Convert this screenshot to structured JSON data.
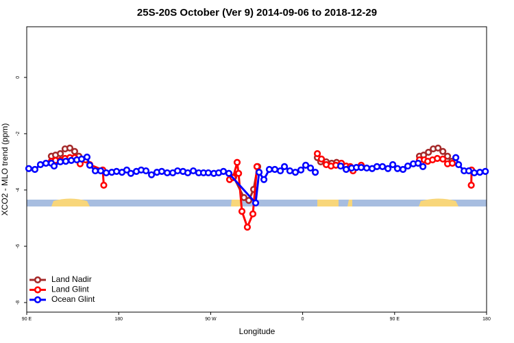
{
  "chart_data": {
    "type": "line",
    "title": "25S-20S October (Ver 9)   2014-09-06 to 2018-12-29",
    "x_label": "Longitude",
    "y_label": "XCO2 - MLO trend (ppm)",
    "xlim": [
      90,
      540
    ],
    "ylim": [
      -8.34,
      1.8
    ],
    "xticks": [
      {
        "value": 90,
        "label": "90 E"
      },
      {
        "value": 180,
        "label": "180"
      },
      {
        "value": 270,
        "label": "90 W"
      },
      {
        "value": 360,
        "label": "0"
      },
      {
        "value": 450,
        "label": "90 E"
      },
      {
        "value": 540,
        "label": "180"
      }
    ],
    "yticks": [
      0,
      -2,
      -4,
      -6,
      -8
    ],
    "legend": "bottom-left",
    "series": [
      {
        "name": "Land Nadir",
        "color": "#a52a2a",
        "x": [
          114.1,
          118.2,
          122.9,
          127.5,
          132.2,
          136.9,
          141.0,
          null,
          292.5,
          302.6,
          307.3,
          312.0,
          316.0,
          null,
          374.4,
          377.7,
          383.1,
          388.4,
          393.2,
          null,
          474.3,
          478.4,
          483.1,
          487.8,
          492.5,
          497.2,
          501.8,
          505.9
        ],
        "values": [
          -2.8,
          -2.76,
          -2.71,
          -2.54,
          -2.51,
          -2.63,
          -2.8,
          null,
          -3.54,
          -4.27,
          -4.37,
          -3.98,
          -3.17,
          null,
          -2.85,
          -3.0,
          -3.0,
          -3.05,
          -3.02,
          null,
          -2.8,
          -2.76,
          -2.66,
          -2.54,
          -2.51,
          -2.63,
          -2.8,
          -2.98
        ]
      },
      {
        "name": "Land Glint",
        "color": "#ff0000",
        "x": [
          114.1,
          118.2,
          122.9,
          127.5,
          132.2,
          136.9,
          142.3,
          147.6,
          151.7,
          164.4,
          165.4,
          null,
          288.5,
          291.9,
          295.9,
          297.3,
          300.6,
          305.9,
          311.3,
          315.3,
          null,
          374.4,
          378.4,
          383.1,
          387.8,
          392.5,
          397.9,
          402.6,
          406.6,
          409.3,
          417.3,
          null,
          474.3,
          479.0,
          482.4,
          487.1,
          491.8,
          497.2,
          501.8,
          506.5,
          null,
          525.3,
          525.0
        ],
        "values": [
          -2.98,
          -2.95,
          -2.95,
          -2.88,
          -2.85,
          -2.85,
          -3.07,
          -2.93,
          -3.1,
          -3.29,
          -3.83,
          null,
          -3.63,
          -3.56,
          -3.02,
          -3.41,
          -4.76,
          -5.32,
          -4.85,
          -3.17,
          null,
          -2.71,
          -2.9,
          -3.1,
          -3.15,
          -3.12,
          -3.05,
          -3.15,
          -3.17,
          -3.32,
          -3.12,
          null,
          -2.93,
          -2.93,
          -2.98,
          -2.93,
          -2.88,
          -2.9,
          -3.07,
          -3.05,
          null,
          -3.29,
          -3.83
        ]
      },
      {
        "name": "Ocean Glint",
        "color": "#0000ff",
        "x": [
          92.0,
          98.0,
          103.4,
          108.8,
          114.1,
          116.8,
          122.9,
          128.2,
          133.6,
          139.0,
          143.7,
          149.0,
          151.7,
          157.1,
          162.4,
          167.8,
          173.2,
          177.9,
          183.2,
          187.9,
          191.9,
          197.3,
          202.0,
          206.7,
          212.1,
          217.4,
          222.1,
          227.5,
          232.9,
          237.6,
          242.9,
          247.6,
          253.0,
          258.3,
          263.0,
          267.7,
          273.1,
          277.8,
          282.5,
          287.8,
          314.0,
          317.4,
          322.1,
          327.4,
          332.8,
          338.2,
          342.2,
          347.5,
          352.9,
          358.3,
          363.0,
          367.7,
          372.4,
          null,
          397.2,
          402.6,
          407.9,
          412.6,
          417.3,
          422.7,
          428.0,
          432.7,
          438.1,
          443.5,
          448.2,
          452.8,
          458.2,
          462.9,
          468.3,
          473.0,
          477.7,
          null,
          509.9,
          512.6,
          518.0,
          522.6,
          528.0,
          533.4,
          538.8
        ],
        "values": [
          -3.24,
          -3.27,
          -3.1,
          -3.05,
          -3.05,
          -3.15,
          -3.0,
          -2.98,
          -2.95,
          -2.93,
          -2.9,
          -2.83,
          -3.12,
          -3.32,
          -3.32,
          -3.39,
          -3.37,
          -3.34,
          -3.37,
          -3.29,
          -3.41,
          -3.34,
          -3.29,
          -3.32,
          -3.46,
          -3.37,
          -3.34,
          -3.39,
          -3.39,
          -3.32,
          -3.34,
          -3.39,
          -3.32,
          -3.39,
          -3.39,
          -3.39,
          -3.41,
          -3.39,
          -3.34,
          -3.41,
          -4.46,
          -3.37,
          -3.63,
          -3.27,
          -3.27,
          -3.32,
          -3.17,
          -3.32,
          -3.37,
          -3.29,
          -3.12,
          -3.22,
          -3.37,
          null,
          -3.15,
          -3.27,
          -3.22,
          -3.2,
          -3.2,
          -3.22,
          -3.24,
          -3.17,
          -3.17,
          -3.24,
          -3.1,
          -3.24,
          -3.27,
          -3.15,
          -3.07,
          -3.05,
          -3.17,
          null,
          -2.85,
          -3.1,
          -3.32,
          -3.32,
          -3.39,
          -3.37,
          -3.34
        ]
      }
    ]
  }
}
